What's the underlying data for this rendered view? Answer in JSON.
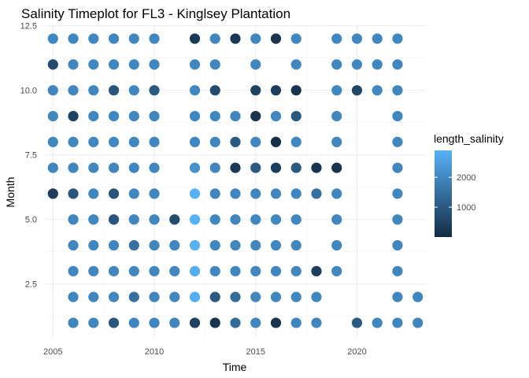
{
  "chart_data": {
    "type": "scatter",
    "title": "Salinity Timeplot for FL3 - Kinglsey Plantation",
    "xlabel": "Time",
    "ylabel": "Month",
    "xlim": [
      2004.6,
      2023.4
    ],
    "ylim": [
      0.45,
      12.55
    ],
    "x_ticks": [
      2005,
      2010,
      2015,
      2020
    ],
    "x_tick_labels": [
      "2005",
      "2010",
      "2015",
      "2020"
    ],
    "y_ticks": [
      2.5,
      5.0,
      7.5,
      10.0,
      12.5
    ],
    "y_tick_labels": [
      "2.5",
      "5.0",
      "7.5",
      "10.0",
      "12.5"
    ],
    "grid": true,
    "legend": {
      "title": "length_salinity",
      "placement": "right",
      "range": [
        0,
        2900
      ],
      "ticks": [
        1000,
        2000
      ],
      "tick_labels": [
        "1000",
        "2000"
      ],
      "colors": {
        "low": "#132B43",
        "high": "#56B1F7"
      }
    },
    "points": [
      {
        "x": 2005,
        "y": 12,
        "v": 2000
      },
      {
        "x": 2005,
        "y": 11,
        "v": 700
      },
      {
        "x": 2005,
        "y": 10,
        "v": 2000
      },
      {
        "x": 2005,
        "y": 9,
        "v": 2000
      },
      {
        "x": 2005,
        "y": 8,
        "v": 2000
      },
      {
        "x": 2005,
        "y": 7,
        "v": 2000
      },
      {
        "x": 2005,
        "y": 6,
        "v": 400
      },
      {
        "x": 2006,
        "y": 12,
        "v": 2000
      },
      {
        "x": 2006,
        "y": 11,
        "v": 2000
      },
      {
        "x": 2006,
        "y": 10,
        "v": 2000
      },
      {
        "x": 2006,
        "y": 9,
        "v": 500
      },
      {
        "x": 2006,
        "y": 8,
        "v": 2000
      },
      {
        "x": 2006,
        "y": 7,
        "v": 2000
      },
      {
        "x": 2006,
        "y": 6,
        "v": 900
      },
      {
        "x": 2006,
        "y": 5,
        "v": 2000
      },
      {
        "x": 2006,
        "y": 4,
        "v": 2000
      },
      {
        "x": 2006,
        "y": 3,
        "v": 2000
      },
      {
        "x": 2006,
        "y": 2,
        "v": 2000
      },
      {
        "x": 2006,
        "y": 1,
        "v": 2000
      },
      {
        "x": 2007,
        "y": 12,
        "v": 2000
      },
      {
        "x": 2007,
        "y": 11,
        "v": 2000
      },
      {
        "x": 2007,
        "y": 10,
        "v": 2000
      },
      {
        "x": 2007,
        "y": 9,
        "v": 2000
      },
      {
        "x": 2007,
        "y": 8,
        "v": 2000
      },
      {
        "x": 2007,
        "y": 7,
        "v": 2000
      },
      {
        "x": 2007,
        "y": 6,
        "v": 2000
      },
      {
        "x": 2007,
        "y": 5,
        "v": 2000
      },
      {
        "x": 2007,
        "y": 4,
        "v": 2000
      },
      {
        "x": 2007,
        "y": 3,
        "v": 2000
      },
      {
        "x": 2007,
        "y": 2,
        "v": 2000
      },
      {
        "x": 2007,
        "y": 1,
        "v": 2000
      },
      {
        "x": 2008,
        "y": 12,
        "v": 2000
      },
      {
        "x": 2008,
        "y": 11,
        "v": 2000
      },
      {
        "x": 2008,
        "y": 10,
        "v": 900
      },
      {
        "x": 2008,
        "y": 9,
        "v": 2000
      },
      {
        "x": 2008,
        "y": 8,
        "v": 2000
      },
      {
        "x": 2008,
        "y": 7,
        "v": 2000
      },
      {
        "x": 2008,
        "y": 6,
        "v": 900
      },
      {
        "x": 2008,
        "y": 5,
        "v": 900
      },
      {
        "x": 2008,
        "y": 4,
        "v": 2000
      },
      {
        "x": 2008,
        "y": 3,
        "v": 2000
      },
      {
        "x": 2008,
        "y": 2,
        "v": 2000
      },
      {
        "x": 2008,
        "y": 1,
        "v": 900
      },
      {
        "x": 2009,
        "y": 12,
        "v": 2000
      },
      {
        "x": 2009,
        "y": 11,
        "v": 2000
      },
      {
        "x": 2009,
        "y": 10,
        "v": 2000
      },
      {
        "x": 2009,
        "y": 9,
        "v": 2000
      },
      {
        "x": 2009,
        "y": 8,
        "v": 2000
      },
      {
        "x": 2009,
        "y": 7,
        "v": 2000
      },
      {
        "x": 2009,
        "y": 6,
        "v": 2000
      },
      {
        "x": 2009,
        "y": 5,
        "v": 2000
      },
      {
        "x": 2009,
        "y": 4,
        "v": 1500
      },
      {
        "x": 2009,
        "y": 3,
        "v": 2000
      },
      {
        "x": 2009,
        "y": 2,
        "v": 1500
      },
      {
        "x": 2009,
        "y": 1,
        "v": 2000
      },
      {
        "x": 2010,
        "y": 12,
        "v": 2000
      },
      {
        "x": 2010,
        "y": 11,
        "v": 2000
      },
      {
        "x": 2010,
        "y": 10,
        "v": 1000
      },
      {
        "x": 2010,
        "y": 9,
        "v": 2000
      },
      {
        "x": 2010,
        "y": 8,
        "v": 2000
      },
      {
        "x": 2010,
        "y": 7,
        "v": 2000
      },
      {
        "x": 2010,
        "y": 6,
        "v": 2000
      },
      {
        "x": 2010,
        "y": 5,
        "v": 2000
      },
      {
        "x": 2010,
        "y": 4,
        "v": 2000
      },
      {
        "x": 2010,
        "y": 3,
        "v": 2000
      },
      {
        "x": 2010,
        "y": 2,
        "v": 2000
      },
      {
        "x": 2010,
        "y": 1,
        "v": 2000
      },
      {
        "x": 2011,
        "y": 5,
        "v": 700
      },
      {
        "x": 2011,
        "y": 4,
        "v": 2000
      },
      {
        "x": 2011,
        "y": 3,
        "v": 2000
      },
      {
        "x": 2011,
        "y": 2,
        "v": 2000
      },
      {
        "x": 2011,
        "y": 1,
        "v": 2000
      },
      {
        "x": 2012,
        "y": 12,
        "v": 300
      },
      {
        "x": 2012,
        "y": 11,
        "v": 2000
      },
      {
        "x": 2012,
        "y": 10,
        "v": 2000
      },
      {
        "x": 2012,
        "y": 9,
        "v": 2000
      },
      {
        "x": 2012,
        "y": 8,
        "v": 2000
      },
      {
        "x": 2012,
        "y": 7,
        "v": 2200
      },
      {
        "x": 2012,
        "y": 6,
        "v": 2900
      },
      {
        "x": 2012,
        "y": 5,
        "v": 2900
      },
      {
        "x": 2012,
        "y": 4,
        "v": 2900
      },
      {
        "x": 2012,
        "y": 3,
        "v": 2800
      },
      {
        "x": 2012,
        "y": 2,
        "v": 2800
      },
      {
        "x": 2012,
        "y": 1,
        "v": 500
      },
      {
        "x": 2013,
        "y": 12,
        "v": 2000
      },
      {
        "x": 2013,
        "y": 11,
        "v": 2000
      },
      {
        "x": 2013,
        "y": 10,
        "v": 700
      },
      {
        "x": 2013,
        "y": 9,
        "v": 2000
      },
      {
        "x": 2013,
        "y": 8,
        "v": 2000
      },
      {
        "x": 2013,
        "y": 7,
        "v": 2000
      },
      {
        "x": 2013,
        "y": 6,
        "v": 2000
      },
      {
        "x": 2013,
        "y": 5,
        "v": 2000
      },
      {
        "x": 2013,
        "y": 4,
        "v": 2000
      },
      {
        "x": 2013,
        "y": 3,
        "v": 2000
      },
      {
        "x": 2013,
        "y": 2,
        "v": 1000
      },
      {
        "x": 2013,
        "y": 1,
        "v": 200
      },
      {
        "x": 2014,
        "y": 12,
        "v": 300
      },
      {
        "x": 2014,
        "y": 9,
        "v": 2000
      },
      {
        "x": 2014,
        "y": 8,
        "v": 1000
      },
      {
        "x": 2014,
        "y": 7,
        "v": 300
      },
      {
        "x": 2014,
        "y": 6,
        "v": 2000
      },
      {
        "x": 2014,
        "y": 5,
        "v": 2000
      },
      {
        "x": 2014,
        "y": 4,
        "v": 2000
      },
      {
        "x": 2014,
        "y": 3,
        "v": 2000
      },
      {
        "x": 2014,
        "y": 2,
        "v": 1400
      },
      {
        "x": 2014,
        "y": 1,
        "v": 1400
      },
      {
        "x": 2015,
        "y": 12,
        "v": 2000
      },
      {
        "x": 2015,
        "y": 11,
        "v": 2000
      },
      {
        "x": 2015,
        "y": 10,
        "v": 500
      },
      {
        "x": 2015,
        "y": 9,
        "v": 200
      },
      {
        "x": 2015,
        "y": 8,
        "v": 2000
      },
      {
        "x": 2015,
        "y": 7,
        "v": 1000
      },
      {
        "x": 2015,
        "y": 6,
        "v": 2000
      },
      {
        "x": 2015,
        "y": 5,
        "v": 2000
      },
      {
        "x": 2015,
        "y": 4,
        "v": 2000
      },
      {
        "x": 2015,
        "y": 3,
        "v": 2000
      },
      {
        "x": 2015,
        "y": 2,
        "v": 2000
      },
      {
        "x": 2015,
        "y": 1,
        "v": 2000
      },
      {
        "x": 2016,
        "y": 12,
        "v": 200
      },
      {
        "x": 2016,
        "y": 10,
        "v": 400
      },
      {
        "x": 2016,
        "y": 9,
        "v": 2000
      },
      {
        "x": 2016,
        "y": 8,
        "v": 100
      },
      {
        "x": 2016,
        "y": 7,
        "v": 400
      },
      {
        "x": 2016,
        "y": 6,
        "v": 2000
      },
      {
        "x": 2016,
        "y": 5,
        "v": 2000
      },
      {
        "x": 2016,
        "y": 4,
        "v": 2000
      },
      {
        "x": 2016,
        "y": 3,
        "v": 2000
      },
      {
        "x": 2016,
        "y": 2,
        "v": 2000
      },
      {
        "x": 2016,
        "y": 1,
        "v": 200
      },
      {
        "x": 2017,
        "y": 12,
        "v": 2000
      },
      {
        "x": 2017,
        "y": 11,
        "v": 2000
      },
      {
        "x": 2017,
        "y": 10,
        "v": 200
      },
      {
        "x": 2017,
        "y": 9,
        "v": 1000
      },
      {
        "x": 2017,
        "y": 8,
        "v": 2000
      },
      {
        "x": 2017,
        "y": 7,
        "v": 1000
      },
      {
        "x": 2017,
        "y": 6,
        "v": 2000
      },
      {
        "x": 2017,
        "y": 5,
        "v": 2000
      },
      {
        "x": 2017,
        "y": 4,
        "v": 2000
      },
      {
        "x": 2017,
        "y": 3,
        "v": 2000
      },
      {
        "x": 2017,
        "y": 2,
        "v": 2000
      },
      {
        "x": 2017,
        "y": 1,
        "v": 2000
      },
      {
        "x": 2018,
        "y": 7,
        "v": 200
      },
      {
        "x": 2018,
        "y": 6,
        "v": 1500
      },
      {
        "x": 2018,
        "y": 3,
        "v": 400
      },
      {
        "x": 2018,
        "y": 2,
        "v": 2000
      },
      {
        "x": 2018,
        "y": 1,
        "v": 2000
      },
      {
        "x": 2019,
        "y": 12,
        "v": 2000
      },
      {
        "x": 2019,
        "y": 11,
        "v": 2000
      },
      {
        "x": 2019,
        "y": 10,
        "v": 2000
      },
      {
        "x": 2019,
        "y": 9,
        "v": 2000
      },
      {
        "x": 2019,
        "y": 8,
        "v": 2000
      },
      {
        "x": 2019,
        "y": 7,
        "v": 200
      },
      {
        "x": 2019,
        "y": 6,
        "v": 2000
      },
      {
        "x": 2019,
        "y": 5,
        "v": 2000
      },
      {
        "x": 2019,
        "y": 4,
        "v": 2000
      },
      {
        "x": 2019,
        "y": 3,
        "v": 2000
      },
      {
        "x": 2020,
        "y": 12,
        "v": 2000
      },
      {
        "x": 2020,
        "y": 11,
        "v": 2000
      },
      {
        "x": 2020,
        "y": 10,
        "v": 600
      },
      {
        "x": 2020,
        "y": 1,
        "v": 1000
      },
      {
        "x": 2021,
        "y": 12,
        "v": 2000
      },
      {
        "x": 2021,
        "y": 11,
        "v": 2000
      },
      {
        "x": 2021,
        "y": 10,
        "v": 2000
      },
      {
        "x": 2021,
        "y": 1,
        "v": 2000
      },
      {
        "x": 2022,
        "y": 12,
        "v": 2000
      },
      {
        "x": 2022,
        "y": 11,
        "v": 2000
      },
      {
        "x": 2022,
        "y": 10,
        "v": 2000
      },
      {
        "x": 2022,
        "y": 9,
        "v": 2000
      },
      {
        "x": 2022,
        "y": 8,
        "v": 2000
      },
      {
        "x": 2022,
        "y": 7,
        "v": 2000
      },
      {
        "x": 2022,
        "y": 6,
        "v": 2000
      },
      {
        "x": 2022,
        "y": 5,
        "v": 2000
      },
      {
        "x": 2022,
        "y": 4,
        "v": 2000
      },
      {
        "x": 2022,
        "y": 3,
        "v": 2000
      },
      {
        "x": 2022,
        "y": 2,
        "v": 2000
      },
      {
        "x": 2022,
        "y": 1,
        "v": 2000
      },
      {
        "x": 2023,
        "y": 2,
        "v": 2000
      },
      {
        "x": 2023,
        "y": 1,
        "v": 2000
      }
    ]
  }
}
